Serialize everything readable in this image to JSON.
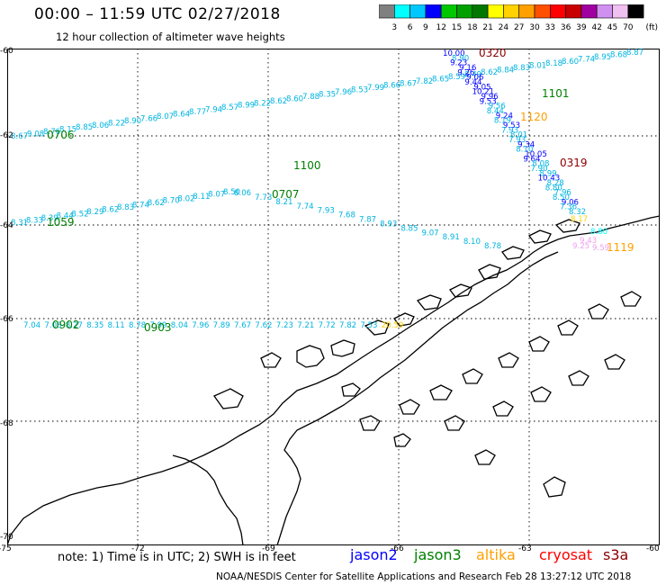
{
  "header": {
    "title": "00:00 – 11:59 UTC 02/27/2018",
    "subtitle": "12 hour collection of altimeter wave heights"
  },
  "scale": {
    "unit": "(ft)",
    "ticks": [
      "3",
      "6",
      "9",
      "12",
      "15",
      "18",
      "21",
      "24",
      "27",
      "30",
      "33",
      "36",
      "39",
      "42",
      "45",
      "70"
    ],
    "colors": [
      "#808080",
      "#00ffff",
      "#00c8ff",
      "#0000ff",
      "#00c800",
      "#00a000",
      "#007800",
      "#ffff00",
      "#ffd200",
      "#ffa000",
      "#ff5000",
      "#ff0000",
      "#c80000",
      "#a000a0",
      "#d090f0",
      "#f0c0f0",
      "#000000"
    ]
  },
  "axes": {
    "lon_labels": [
      "-75",
      "-72",
      "-69",
      "-66",
      "-63",
      "-60"
    ],
    "lat_labels": [
      "-60",
      "-62",
      "-64",
      "-66",
      "-68",
      "-70"
    ]
  },
  "tracks": {
    "track_0706": {
      "label": "0706",
      "label_color": "#008000",
      "values": [
        "8.67",
        "9.08",
        "8.76",
        "8.15",
        "8.85",
        "8.06",
        "8.22",
        "8.90",
        "7.66",
        "8.07",
        "8.64",
        "8.77",
        "7.94",
        "8.57",
        "8.99",
        "8.22",
        "8.62",
        "8.60",
        "7.88",
        "8.35",
        "7.96",
        "8.53",
        "7.99",
        "8.66",
        "8.67",
        "7.82",
        "8.65",
        "8.59",
        "8.49",
        "8.62",
        "8.84",
        "8.83",
        "8.01",
        "8.18",
        "8.60",
        "7.74",
        "8.95",
        "8.68",
        "8.87"
      ]
    },
    "track_1100": {
      "label": "1100",
      "label_color": "#008000"
    },
    "track_1101": {
      "label": "1101",
      "label_color": "#008000"
    },
    "track_1059": {
      "label": "1059",
      "label_color": "#008000",
      "values": [
        "8.31",
        "8.33",
        "8.39",
        "8.44",
        "8.52",
        "8.29",
        "8.62",
        "8.83",
        "8.74",
        "8.62",
        "8.70",
        "8.02",
        "8.11",
        "8.07",
        "8.50",
        "8.06",
        "7.73",
        "8.21",
        "7.74",
        "7.93",
        "7.68",
        "7.87",
        "8.93",
        "8.85",
        "9.07",
        "8.91",
        "8.10",
        "8.78"
      ]
    },
    "track_0707": {
      "label": "0707",
      "label_color": "#008000"
    },
    "track_0320": {
      "label": "0320",
      "label_color": "#8b0000",
      "values": [
        "10.00",
        "8.90",
        "9.23",
        "9.16",
        "9.26",
        "9.06",
        "9.44",
        "9.05",
        "10.21",
        "9.96",
        "9.53",
        "9.56",
        "8.44",
        "9.24",
        "8.19",
        "9.53",
        "7.93",
        "8.01",
        "7.93",
        "9.34",
        "8.10",
        "10.05",
        "9.64",
        "8.08",
        "7.90",
        "8.99",
        "10.43",
        "8.28",
        "8.80",
        "7.96",
        "8.50",
        "9.06",
        "7.36",
        "8.32"
      ],
      "blue_values": [
        "10.00",
        "9.23",
        "9.16",
        "9.26",
        "9.06",
        "9.44",
        "9.05",
        "10.21",
        "9.96",
        "9.53",
        "9.24",
        "9.53",
        "9.34",
        "10.05",
        "9.64",
        "10.43",
        "9.06"
      ]
    },
    "track_1120": {
      "label": "1120",
      "label_color": "#ffa000"
    },
    "track_0319": {
      "label": "0319",
      "label_color": "#8b0000"
    },
    "track_1119": {
      "label": "1119",
      "label_color": "#ffa000",
      "values": [
        "8.17",
        "8.80",
        "9.43",
        "9.25",
        "9.59"
      ]
    },
    "track_0902": {
      "label": "0902",
      "label_color": "#008000",
      "values": [
        "7.04",
        "7.08",
        "8.27",
        "8.35",
        "8.11",
        "8.78",
        "7.99",
        "8.04",
        "7.96",
        "7.89",
        "7.67",
        "7.62",
        "7.23",
        "7.21",
        "7.72",
        "7.82",
        "7.53",
        "20.59"
      ]
    },
    "track_0903": {
      "label": "0903",
      "label_color": "#008000"
    }
  },
  "footer": {
    "note": "note: 1) Time is in UTC; 2) SWH is in feet",
    "credit": "NOAA/NESDIS Center for Satellite Applications and Research   Feb 28 13:27:12 UTC 2018",
    "legend": [
      {
        "name": "jason2",
        "color": "#0000ff"
      },
      {
        "name": "jason3",
        "color": "#008000"
      },
      {
        "name": "altika",
        "color": "#ffa000"
      },
      {
        "name": "cryosat",
        "color": "#ff0000"
      },
      {
        "name": "s3a",
        "color": "#8b0000"
      }
    ]
  }
}
